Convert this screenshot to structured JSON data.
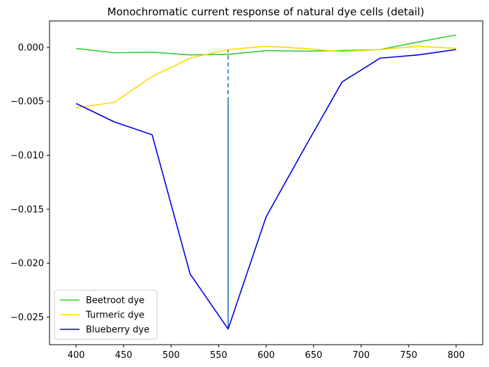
{
  "chart_data": {
    "type": "line",
    "title": "Monochromatic current response of natural dye cells (detail)",
    "xlabel": "",
    "ylabel": "",
    "xlim": [
      372,
      828
    ],
    "ylim": [
      -0.02755,
      0.00245
    ],
    "x_ticks": [
      400,
      450,
      500,
      550,
      600,
      650,
      700,
      750,
      800
    ],
    "x_tick_labels": [
      "400",
      "450",
      "500",
      "550",
      "600",
      "650",
      "700",
      "750",
      "800"
    ],
    "y_ticks": [
      0.0,
      -0.005,
      -0.01,
      -0.015,
      -0.02,
      -0.025
    ],
    "y_tick_labels": [
      "0.000",
      "−0.005",
      "−0.010",
      "−0.015",
      "−0.020",
      "−0.025"
    ],
    "grid": false,
    "legend_position": "lower-left",
    "series": [
      {
        "name": "Beetroot dye",
        "color": "#33cc33",
        "x": [
          400,
          440,
          480,
          520,
          560,
          600,
          640,
          680,
          720,
          760,
          800
        ],
        "y": [
          -0.0001,
          -0.0005,
          -0.00045,
          -0.0007,
          -0.00065,
          -0.0003,
          -0.00035,
          -0.0003,
          -0.0002,
          0.0005,
          0.00115
        ]
      },
      {
        "name": "Turmeric dye",
        "color": "#ffd700",
        "x": [
          400,
          440,
          480,
          520,
          560,
          600,
          640,
          680,
          720,
          760,
          800
        ],
        "y": [
          -0.0056,
          -0.0051,
          -0.0027,
          -0.001,
          -0.0002,
          0.0001,
          -0.0001,
          -0.0004,
          -0.0002,
          0.0001,
          -0.0001
        ]
      },
      {
        "name": "Blueberry dye",
        "color": "#0000e0",
        "x": [
          400,
          440,
          480,
          520,
          560,
          600,
          640,
          680,
          720,
          760,
          800
        ],
        "y": [
          -0.0052,
          -0.0069,
          -0.0081,
          -0.021,
          -0.0261,
          -0.0157,
          -0.0094,
          -0.0032,
          -0.001,
          -0.0007,
          -0.0002
        ]
      }
    ],
    "annotations": [
      {
        "type": "vertical-line",
        "x": 560,
        "color": "#1f77b4",
        "solid_from": -0.0261,
        "solid_to": -0.005,
        "dashed_from": -0.005,
        "dashed_to": -0.0002
      }
    ]
  }
}
